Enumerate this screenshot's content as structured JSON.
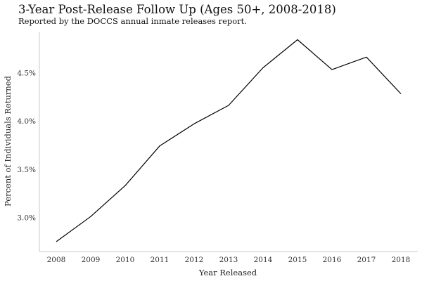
{
  "chart_data": {
    "type": "line",
    "title": "3-Year Post-Release Follow Up (Ages 50+, 2008-2018)",
    "subtitle": "Reported by the DOCCS annual inmate releases report.",
    "xlabel": "Year Released",
    "ylabel": "Percent of Individuals Returned",
    "x": [
      2008,
      2009,
      2010,
      2011,
      2012,
      2013,
      2014,
      2015,
      2016,
      2017,
      2018
    ],
    "y_ticks": [
      "3.0%",
      "3.5%",
      "4.0%",
      "4.5%"
    ],
    "y_tick_values": [
      3.0,
      3.5,
      4.0,
      4.5
    ],
    "ylim": [
      2.7,
      4.87
    ],
    "grid": false,
    "series": [
      {
        "values": [
          2.75,
          3.01,
          3.33,
          3.74,
          3.97,
          4.16,
          4.55,
          4.84,
          4.53,
          4.66,
          4.28
        ],
        "color": "#000000"
      }
    ]
  }
}
